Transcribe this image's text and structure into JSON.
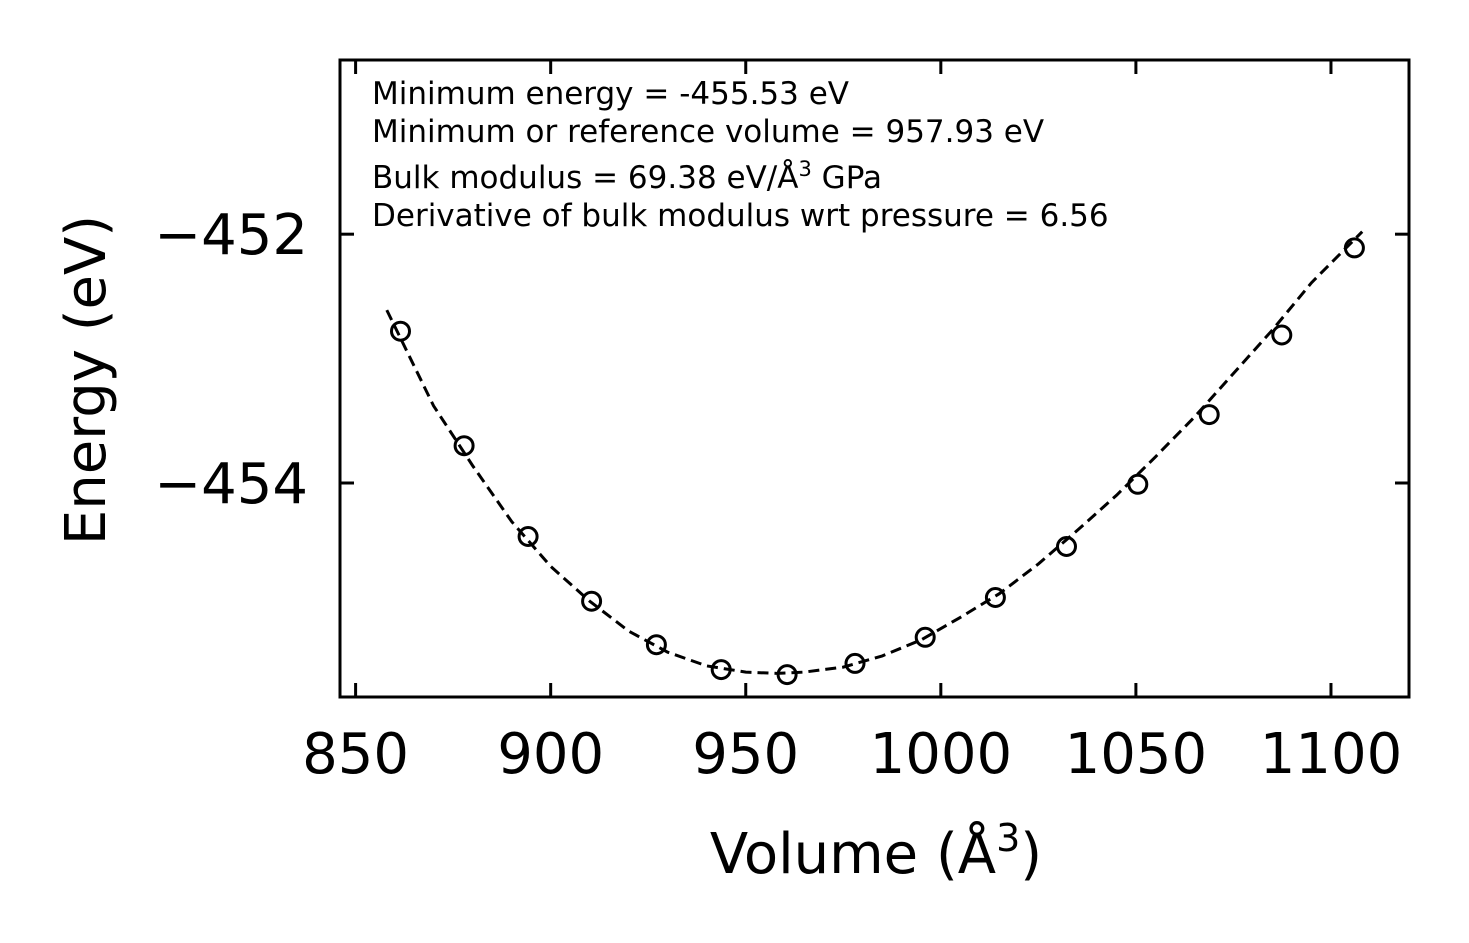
{
  "chart_data": {
    "type": "scatter",
    "title": "",
    "xlabel": "Volume (Å",
    "xlabel_sup": "3",
    "xlabel_close": ")",
    "ylabel": "Energy (eV)",
    "xlim": [
      846,
      1120
    ],
    "ylim": [
      -455.72,
      -450.6
    ],
    "xticks": [
      850,
      900,
      950,
      1000,
      1050,
      1100
    ],
    "xtick_labels": [
      "850",
      "900",
      "950",
      "1000",
      "1050",
      "1100"
    ],
    "yticks": [
      -452,
      -454
    ],
    "ytick_labels": [
      "−452",
      "−454"
    ],
    "grid": false,
    "legend": "none",
    "series": [
      {
        "name": "data",
        "marker": "open-circle",
        "x": [
          861.5,
          877.8,
          894.2,
          910.5,
          927.1,
          943.7,
          960.6,
          978.0,
          996.0,
          1014.0,
          1032.2,
          1050.5,
          1068.8,
          1087.4,
          1106.0
        ],
        "y": [
          -452.78,
          -453.7,
          -454.43,
          -454.95,
          -455.3,
          -455.5,
          -455.54,
          -455.45,
          -455.24,
          -454.92,
          -454.51,
          -454.01,
          -453.45,
          -452.81,
          -452.11
        ]
      },
      {
        "name": "fit",
        "style": "dashed",
        "x": [
          858,
          870,
          880,
          890,
          900,
          910,
          920,
          930,
          940,
          950,
          957.93,
          965,
          975,
          985,
          995,
          1005,
          1015,
          1025,
          1035,
          1045,
          1055,
          1065,
          1075,
          1085,
          1095,
          1108
        ],
        "y": [
          -452.61,
          -453.38,
          -453.86,
          -454.31,
          -454.67,
          -454.95,
          -455.19,
          -455.36,
          -455.47,
          -455.52,
          -455.53,
          -455.52,
          -455.48,
          -455.39,
          -455.26,
          -455.08,
          -454.89,
          -454.65,
          -454.38,
          -454.1,
          -453.79,
          -453.47,
          -453.12,
          -452.77,
          -452.39,
          -451.98
        ]
      }
    ],
    "annotations": [
      "Minimum energy = -455.53 eV",
      "Minimum or reference volume = 957.93 eV",
      "Bulk modulus = 69.38 eV/Å",
      "Derivative of bulk modulus wrt pressure = 6.56"
    ],
    "annotation_bulk_sup": "3",
    "annotation_bulk_suffix": " GPa"
  }
}
